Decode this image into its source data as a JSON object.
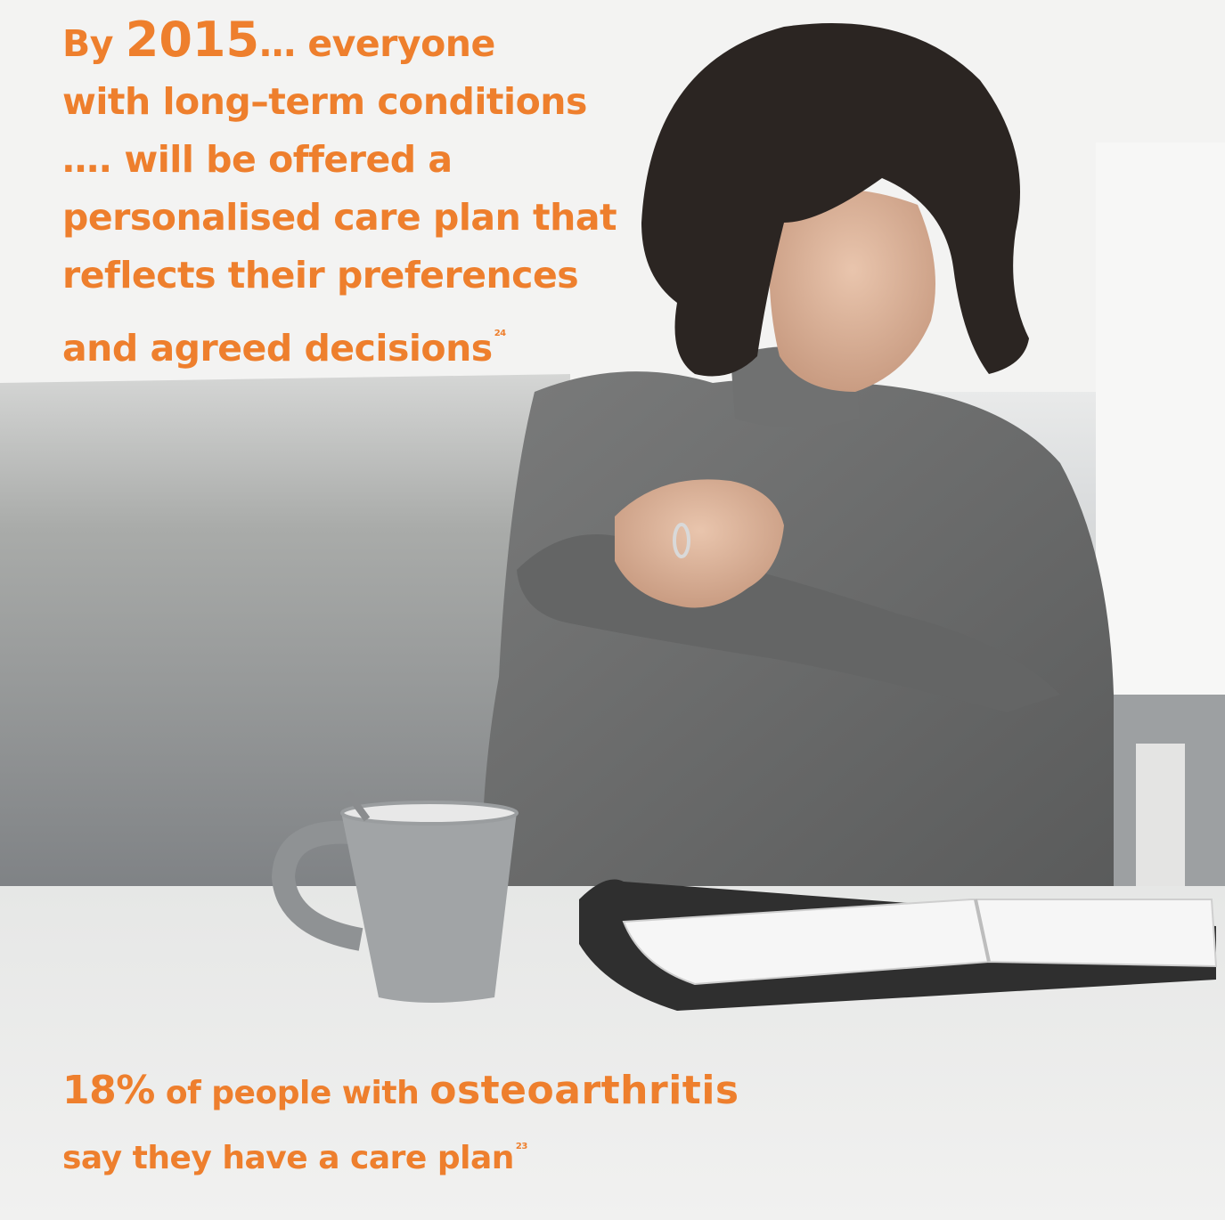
{
  "headline": {
    "by": "By ",
    "year": "2015",
    "line1_rest": "… everyone",
    "line2": "with long–term conditions",
    "line3": "…. will be offered a",
    "line4": "personalised care plan that",
    "line5": "reflects their preferences",
    "line6": "and agreed decisions",
    "ref": "24"
  },
  "stat": {
    "percent": "18%",
    "mid": " of people with ",
    "condition": "osteoarthritis",
    "line2": "say they have a care plan",
    "ref": "23"
  },
  "colors": {
    "accent": "#ee7f2d",
    "sweater": "#6b6c6c",
    "hair": "#2b2522",
    "table": "#ecedec"
  }
}
